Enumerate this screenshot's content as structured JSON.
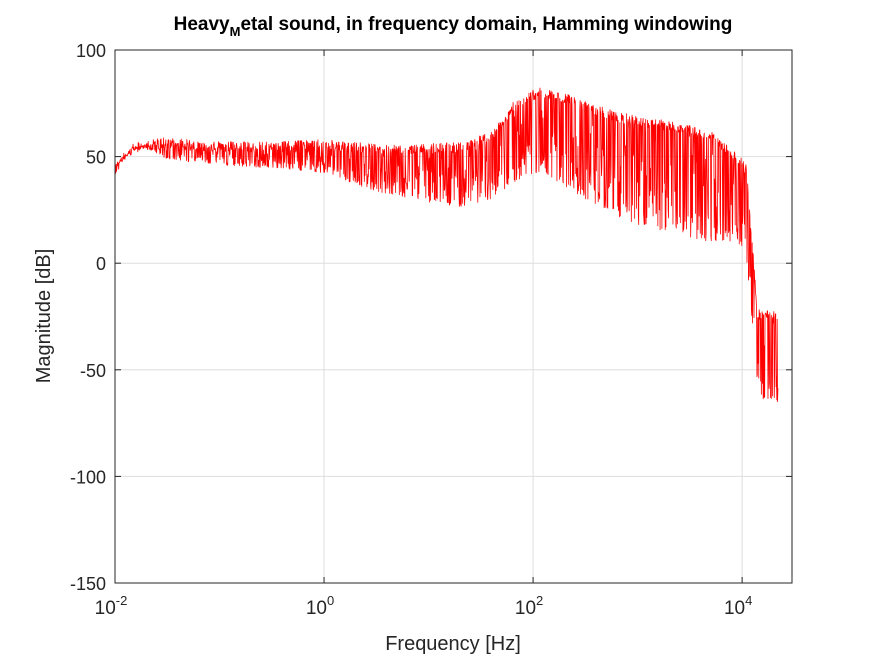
{
  "chart_data": {
    "type": "line",
    "title": {
      "main": "Heavy",
      "subscript": "M",
      "rest": "etal sound, in frequency domain, Hamming windowing"
    },
    "xlabel": "Frequency [Hz]",
    "ylabel": "Magnitude [dB]",
    "xscale": "log",
    "xlim": [
      0.01,
      30000
    ],
    "ylim": [
      -150,
      100
    ],
    "grid": true,
    "xticks": [
      {
        "value": 0.01,
        "base": "10",
        "exp": "-2"
      },
      {
        "value": 1,
        "base": "10",
        "exp": "0"
      },
      {
        "value": 100,
        "base": "10",
        "exp": "2"
      },
      {
        "value": 10000,
        "base": "10",
        "exp": "4"
      }
    ],
    "yticks": [
      {
        "value": 100,
        "label": "100"
      },
      {
        "value": 50,
        "label": "50"
      },
      {
        "value": 0,
        "label": "0"
      },
      {
        "value": -50,
        "label": "-50"
      },
      {
        "value": -100,
        "label": "-100"
      },
      {
        "value": -150,
        "label": "-150"
      }
    ],
    "series": [
      {
        "color": "#ff0000",
        "envelope": [
          {
            "x": 0.01,
            "upper": 46,
            "lower": 45
          },
          {
            "x": 0.012,
            "upper": 52,
            "lower": 47
          },
          {
            "x": 0.015,
            "upper": 56,
            "lower": 51
          },
          {
            "x": 0.02,
            "upper": 58,
            "lower": 52
          },
          {
            "x": 0.03,
            "upper": 59,
            "lower": 44
          },
          {
            "x": 0.05,
            "upper": 58,
            "lower": 42
          },
          {
            "x": 0.1,
            "upper": 57,
            "lower": 40
          },
          {
            "x": 0.3,
            "upper": 57,
            "lower": 38
          },
          {
            "x": 1,
            "upper": 58,
            "lower": 34
          },
          {
            "x": 3,
            "upper": 56,
            "lower": 22
          },
          {
            "x": 10,
            "upper": 56,
            "lower": 14
          },
          {
            "x": 20,
            "upper": 57,
            "lower": 10
          },
          {
            "x": 40,
            "upper": 62,
            "lower": 12
          },
          {
            "x": 70,
            "upper": 78,
            "lower": 18
          },
          {
            "x": 120,
            "upper": 83,
            "lower": 22
          },
          {
            "x": 200,
            "upper": 80,
            "lower": 12
          },
          {
            "x": 400,
            "upper": 74,
            "lower": 2
          },
          {
            "x": 800,
            "upper": 70,
            "lower": -8
          },
          {
            "x": 2000,
            "upper": 67,
            "lower": -14
          },
          {
            "x": 5000,
            "upper": 62,
            "lower": -18
          },
          {
            "x": 9000,
            "upper": 52,
            "lower": -12
          },
          {
            "x": 11000,
            "upper": 46,
            "lower": -20
          },
          {
            "x": 12500,
            "upper": 10,
            "lower": -50
          },
          {
            "x": 14000,
            "upper": -22,
            "lower": -80
          },
          {
            "x": 17000,
            "upper": -21,
            "lower": -90
          },
          {
            "x": 20000,
            "upper": -22,
            "lower": -85
          },
          {
            "x": 22000,
            "upper": -24,
            "lower": -90
          }
        ]
      }
    ]
  }
}
